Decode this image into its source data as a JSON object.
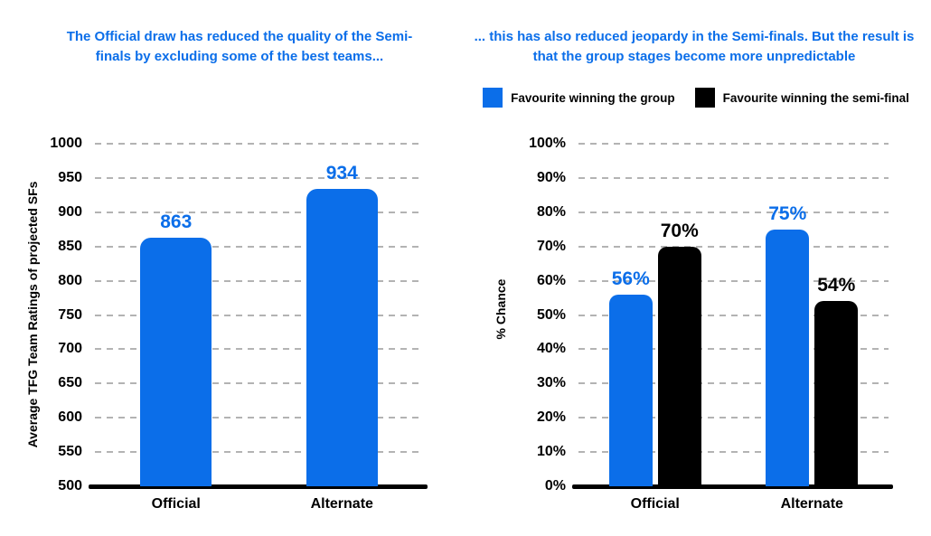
{
  "colors": {
    "accent_blue": "#0b6ee9",
    "bar_black": "#000000",
    "grid_gray": "#b3b3b3",
    "axis_black": "#000000",
    "background": "#ffffff"
  },
  "chart_data": [
    {
      "type": "bar",
      "title": "The Official draw has reduced the quality of the Semi-finals by excluding some of the best teams...",
      "ylabel": "Average TFG Team Ratings of projected SFs",
      "xlabel": "",
      "categories": [
        "Official",
        "Alternate"
      ],
      "values": [
        863,
        934
      ],
      "data_labels": [
        "863",
        "934"
      ],
      "bar_color": "#0b6ee9",
      "label_color": "#0b6ee9",
      "ylim": [
        500,
        1000
      ],
      "ytick_step": 50,
      "ytick_labels": [
        "500",
        "550",
        "600",
        "650",
        "700",
        "750",
        "800",
        "850",
        "900",
        "950",
        "1000"
      ],
      "grid": "dashed horizontal"
    },
    {
      "type": "bar",
      "title": "... this has also reduced jeopardy in the Semi-finals. But the result is that the group stages become more unpredictable",
      "ylabel": "% Chance",
      "xlabel": "",
      "categories": [
        "Official",
        "Alternate"
      ],
      "series": [
        {
          "name": "Favourite winning the group",
          "color": "#0b6ee9",
          "values": [
            56,
            75
          ],
          "data_labels": [
            "56%",
            "75%"
          ]
        },
        {
          "name": "Favourite winning the semi-final",
          "color": "#000000",
          "values": [
            70,
            54
          ],
          "data_labels": [
            "70%",
            "54%"
          ]
        }
      ],
      "ylim": [
        0,
        100
      ],
      "ytick_step": 10,
      "ytick_labels": [
        "0%",
        "10%",
        "20%",
        "30%",
        "40%",
        "50%",
        "60%",
        "70%",
        "80%",
        "90%",
        "100%"
      ],
      "grid": "dashed horizontal",
      "legend_position": "top"
    }
  ]
}
